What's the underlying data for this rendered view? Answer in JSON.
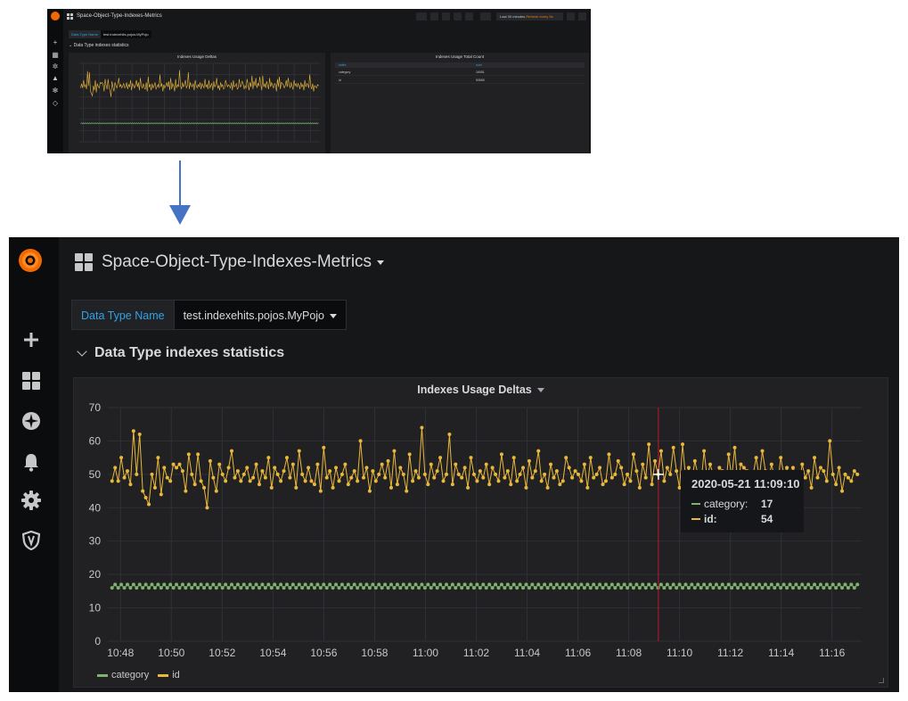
{
  "dashboard": {
    "title": "Space-Object-Type-Indexes-Metrics"
  },
  "variable": {
    "label": "Data Type Name",
    "value": "test.indexehits.pojos.MyPojo"
  },
  "row": {
    "title": "Data Type indexes statistics"
  },
  "thumbnail": {
    "time_range": "Last 30 minutes",
    "refresh": "Refresh every 5s",
    "table_panel": {
      "title": "Indexes Usage Total Count",
      "columns": [
        "index",
        "sum"
      ],
      "rows": [
        {
          "index": "category",
          "sum": "16051"
        },
        {
          "index": "id",
          "sum": "50565"
        }
      ]
    }
  },
  "panel": {
    "title": "Indexes Usage Deltas"
  },
  "tooltip": {
    "time": "2020-05-21 11:09:10",
    "rows": [
      {
        "name": "category:",
        "value": "17"
      },
      {
        "name": "id:",
        "value": "54"
      }
    ]
  },
  "legend": [
    {
      "name": "category",
      "color": "#7eb26d"
    },
    {
      "name": "id",
      "color": "#eab839"
    }
  ],
  "colors": {
    "background": "#161719",
    "panel": "#212124",
    "sidebar": "#0b0c0e",
    "accent_blue": "#33a2e5",
    "grafana_orange": "#f46800",
    "highlight_yellow": "#f4e22c",
    "arrow": "#4472c4",
    "cursor_line": "#c4162a"
  },
  "chart_data": {
    "type": "line",
    "title": "Indexes Usage Deltas",
    "xlabel": "",
    "ylabel": "",
    "ylim": [
      0,
      70
    ],
    "y_ticks": [
      0,
      10,
      20,
      30,
      40,
      50,
      60,
      70
    ],
    "x_ticks": [
      "10:48",
      "10:50",
      "10:52",
      "10:54",
      "10:56",
      "10:58",
      "11:00",
      "11:02",
      "11:04",
      "11:06",
      "11:08",
      "11:10",
      "11:12",
      "11:14",
      "11:16"
    ],
    "x_range": [
      "10:47:30",
      "11:17:10"
    ],
    "grid": true,
    "legend_position": "bottom-left",
    "cursor_time": "11:09:10",
    "series": [
      {
        "name": "id",
        "color": "#eab839",
        "values": [
          48,
          52,
          48,
          55,
          49,
          51,
          47,
          63,
          50,
          62,
          45,
          43,
          41,
          50,
          46,
          55,
          44,
          52,
          49,
          48,
          53,
          52,
          53,
          51,
          45,
          56,
          50,
          47,
          56,
          48,
          46,
          40,
          54,
          49,
          45,
          53,
          50,
          48,
          52,
          57,
          49,
          51,
          48,
          50,
          52,
          48,
          49,
          53,
          47,
          51,
          49,
          55,
          46,
          52,
          50,
          48,
          51,
          55,
          49,
          53,
          46,
          57,
          50,
          48,
          52,
          48,
          47,
          53,
          45,
          58,
          49,
          51,
          46,
          52,
          48,
          50,
          53,
          47,
          49,
          51,
          48,
          60,
          49,
          52,
          45,
          51,
          48,
          50,
          53,
          49,
          54,
          46,
          57,
          47,
          52,
          50,
          45,
          56,
          48,
          51,
          49,
          64,
          50,
          47,
          53,
          49,
          51,
          55,
          48,
          50,
          62,
          47,
          53,
          50,
          49,
          52,
          46,
          55,
          50,
          48,
          51,
          49,
          53,
          47,
          52,
          50,
          48,
          56,
          49,
          51,
          47,
          55,
          48,
          50,
          52,
          46,
          54,
          49,
          51,
          57,
          48,
          50,
          46,
          53,
          49,
          51,
          47,
          48,
          55,
          52,
          49,
          51,
          50,
          48,
          53,
          46,
          55,
          49,
          50,
          52,
          47,
          48,
          56,
          49,
          50,
          54,
          52,
          47,
          50,
          48,
          56,
          51,
          46,
          53,
          49,
          59,
          47,
          54,
          50,
          57,
          48,
          52,
          50,
          58,
          51,
          46,
          59,
          49,
          52,
          48,
          54,
          50,
          47,
          57,
          49,
          53,
          50,
          48,
          52,
          51,
          45,
          56,
          49,
          58,
          47,
          53,
          52,
          51,
          48,
          50,
          55,
          49,
          57,
          51,
          48,
          53,
          49,
          47,
          55,
          50,
          52,
          49,
          52,
          50,
          47,
          53,
          49,
          51,
          46,
          55,
          49,
          52,
          51,
          48,
          60,
          50,
          47,
          52,
          45,
          50,
          49,
          48,
          51,
          50
        ],
        "note_values_estimated": "x evenly spaced every 10s across x_range"
      },
      {
        "name": "category",
        "color": "#7eb26d",
        "values_pattern": [
          16,
          17
        ],
        "value_range": [
          16,
          17
        ]
      }
    ]
  }
}
